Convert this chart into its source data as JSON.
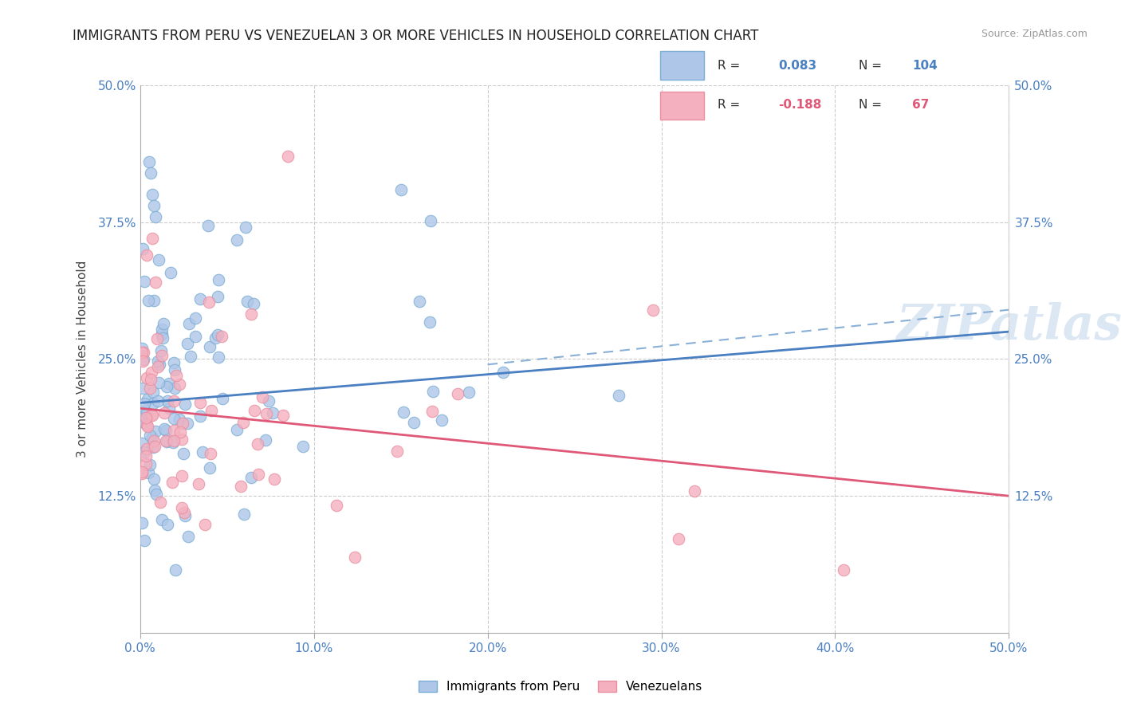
{
  "title": "IMMIGRANTS FROM PERU VS VENEZUELAN 3 OR MORE VEHICLES IN HOUSEHOLD CORRELATION CHART",
  "source": "Source: ZipAtlas.com",
  "ylabel": "3 or more Vehicles in Household",
  "xlim": [
    0.0,
    0.5
  ],
  "ylim": [
    0.0,
    0.5
  ],
  "xtick_vals": [
    0.0,
    0.1,
    0.2,
    0.3,
    0.4,
    0.5
  ],
  "ytick_vals": [
    0.125,
    0.25,
    0.375,
    0.5
  ],
  "ytick_labels": [
    "12.5%",
    "25.0%",
    "37.5%",
    "50.0%"
  ],
  "xtick_labels": [
    "0.0%",
    "10.0%",
    "20.0%",
    "30.0%",
    "40.0%",
    "50.0%"
  ],
  "peru_color": "#aec6e8",
  "peru_edge": "#7aadd4",
  "venezuela_color": "#f4b0bf",
  "venezuela_edge": "#e88fa0",
  "peru_line_color": "#4a7fc1",
  "venezuela_line_color": "#e05878",
  "dash_line_color": "#8ab0d8",
  "tick_color": "#4a7fc1",
  "watermark": "ZIPatlas",
  "R_peru": 0.083,
  "N_peru": 104,
  "R_ven": -0.188,
  "N_ven": 67,
  "peru_line_x0": 0.0,
  "peru_line_y0": 0.21,
  "peru_line_x1": 0.5,
  "peru_line_y1": 0.275,
  "ven_line_x0": 0.0,
  "ven_line_y0": 0.205,
  "ven_line_x1": 0.5,
  "ven_line_y1": 0.125,
  "dash_line_x0": 0.2,
  "dash_line_y0": 0.245,
  "dash_line_x1": 0.5,
  "dash_line_y1": 0.295
}
